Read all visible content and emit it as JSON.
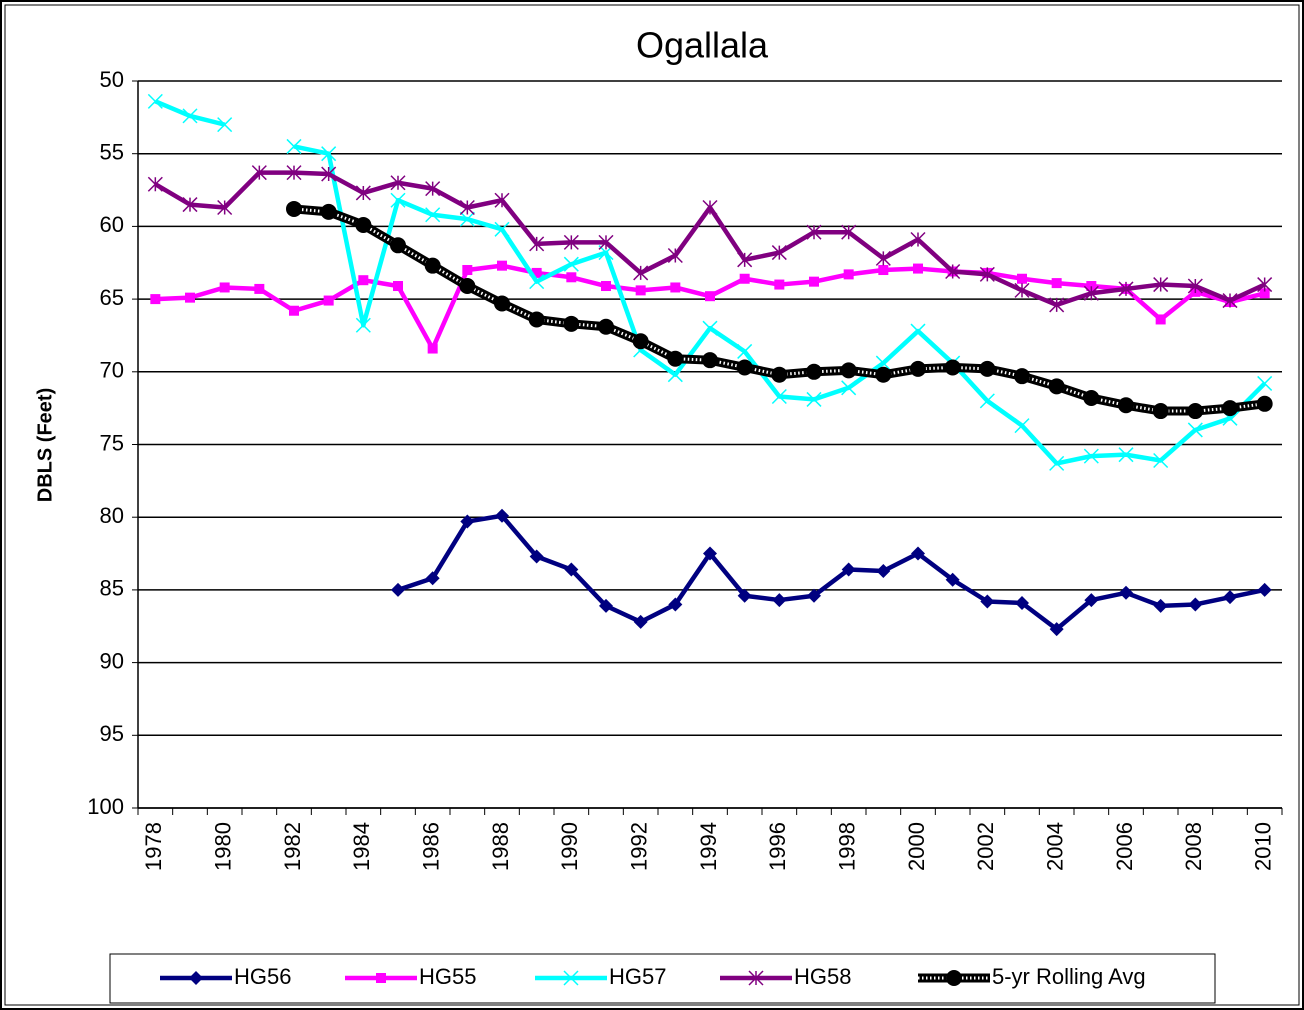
{
  "chart_data": {
    "type": "line",
    "title": "Ogallala",
    "y_label": "DBLS (Feet)",
    "categories": [
      "1978",
      null,
      "1980",
      null,
      "1982",
      null,
      "1984",
      null,
      "1986",
      null,
      "1988",
      null,
      "1990",
      null,
      "1992",
      null,
      "1994",
      null,
      "1996",
      null,
      "1998",
      null,
      "2000",
      null,
      "2002",
      null,
      "2004",
      null,
      "2006",
      null,
      "2008",
      null,
      "2010"
    ],
    "ylim": [
      50,
      100
    ],
    "yticks": [
      50,
      55,
      60,
      65,
      70,
      75,
      80,
      85,
      90,
      95,
      100
    ],
    "y_inverted": true,
    "grid": true,
    "legend": "bottom",
    "series": [
      {
        "name": "HG56",
        "color": "#000080",
        "marker": "diamond",
        "values": [
          null,
          null,
          null,
          null,
          null,
          null,
          null,
          85.0,
          84.2,
          80.3,
          79.9,
          82.7,
          83.6,
          86.1,
          87.2,
          86.0,
          82.5,
          85.4,
          85.7,
          85.4,
          83.6,
          83.7,
          82.5,
          84.3,
          85.8,
          85.9,
          87.7,
          85.7,
          85.2,
          86.1,
          86.0,
          85.5,
          85.0
        ]
      },
      {
        "name": "HG55",
        "color": "#ff00ff",
        "marker": "square",
        "values": [
          65.0,
          64.9,
          64.2,
          64.3,
          65.8,
          65.1,
          63.7,
          64.1,
          68.4,
          63.0,
          62.7,
          63.2,
          63.5,
          64.1,
          64.4,
          64.2,
          64.8,
          63.6,
          64.0,
          63.8,
          63.3,
          63.0,
          62.9,
          63.1,
          63.2,
          63.6,
          63.9,
          64.1,
          64.3,
          66.4,
          64.5,
          65.2,
          64.6
        ]
      },
      {
        "name": "HG57",
        "color": "#00ffff",
        "marker": "x",
        "values": [
          51.4,
          52.4,
          53.0,
          null,
          54.5,
          55.0,
          66.8,
          58.2,
          59.2,
          59.5,
          60.2,
          63.8,
          62.6,
          61.8,
          68.5,
          70.2,
          67.0,
          68.6,
          71.7,
          71.9,
          71.1,
          69.4,
          67.2,
          69.4,
          72.0,
          73.7,
          76.3,
          75.8,
          75.7,
          76.1,
          74.0,
          73.2,
          70.8
        ]
      },
      {
        "name": "HG58",
        "color": "#800080",
        "marker": "asterisk",
        "values": [
          57.1,
          58.5,
          58.7,
          56.3,
          56.3,
          56.4,
          57.7,
          57.0,
          57.4,
          58.7,
          58.2,
          61.2,
          61.1,
          61.1,
          63.2,
          62.0,
          58.7,
          62.3,
          61.8,
          60.4,
          60.4,
          62.2,
          60.9,
          63.1,
          63.3,
          64.4,
          65.4,
          64.6,
          64.3,
          64.0,
          64.1,
          65.1,
          64.0
        ]
      },
      {
        "name": "5-yr Rolling  Avg",
        "color": "#000000",
        "marker": "circle",
        "values": [
          null,
          null,
          null,
          null,
          58.8,
          59.0,
          59.9,
          61.3,
          62.7,
          64.1,
          65.3,
          66.4,
          66.7,
          66.9,
          67.9,
          69.1,
          69.2,
          69.7,
          70.2,
          70.0,
          69.9,
          70.2,
          69.8,
          69.7,
          69.8,
          70.3,
          71.0,
          71.8,
          72.3,
          72.7,
          72.7,
          72.5,
          72.2
        ]
      }
    ]
  }
}
